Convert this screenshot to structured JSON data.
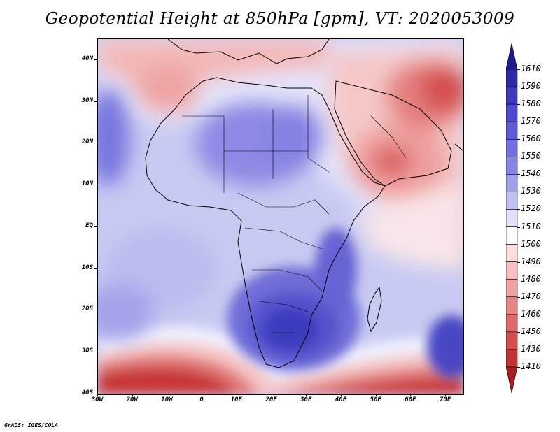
{
  "title": "Geopotential Height at 850hPa [gpm], VT: 2020053009",
  "credit": "GrADS: IGES/COLA",
  "map": {
    "variable": "Geopotential Height",
    "level": "850hPa",
    "units": "gpm",
    "valid_time": "2020053009",
    "lon_range": [
      -30,
      75
    ],
    "lat_range": [
      -40,
      45
    ],
    "lat_ticks": [
      {
        "value": 40,
        "label": "40N"
      },
      {
        "value": 30,
        "label": "30N"
      },
      {
        "value": 20,
        "label": "20N"
      },
      {
        "value": 10,
        "label": "10N"
      },
      {
        "value": 0,
        "label": "EQ"
      },
      {
        "value": -10,
        "label": "10S"
      },
      {
        "value": -20,
        "label": "20S"
      },
      {
        "value": -30,
        "label": "30S"
      },
      {
        "value": -40,
        "label": "40S"
      }
    ],
    "lon_ticks": [
      {
        "value": -30,
        "label": "30W"
      },
      {
        "value": -20,
        "label": "20W"
      },
      {
        "value": -10,
        "label": "10W"
      },
      {
        "value": 0,
        "label": "0"
      },
      {
        "value": 10,
        "label": "10E"
      },
      {
        "value": 20,
        "label": "20E"
      },
      {
        "value": 30,
        "label": "30E"
      },
      {
        "value": 40,
        "label": "40E"
      },
      {
        "value": 50,
        "label": "50E"
      },
      {
        "value": 60,
        "label": "60E"
      },
      {
        "value": 70,
        "label": "70E"
      }
    ]
  },
  "colorbar": {
    "levels": [
      {
        "label": "1610",
        "color": "#1c1a8c"
      },
      {
        "label": "1590",
        "color": "#2c2aa6"
      },
      {
        "label": "1580",
        "color": "#3b39bd"
      },
      {
        "label": "1570",
        "color": "#4c4ad0"
      },
      {
        "label": "1560",
        "color": "#5e5cd8"
      },
      {
        "label": "1550",
        "color": "#7270de"
      },
      {
        "label": "1540",
        "color": "#8886e4"
      },
      {
        "label": "1530",
        "color": "#a2a0ea"
      },
      {
        "label": "1520",
        "color": "#c0c0f2"
      },
      {
        "label": "1510",
        "color": "#e2e2fa"
      },
      {
        "label": "1500",
        "color": "#ffffff"
      },
      {
        "label": "1490",
        "color": "#fcdede"
      },
      {
        "label": "1480",
        "color": "#f6c0c0"
      },
      {
        "label": "1470",
        "color": "#f0a2a2"
      },
      {
        "label": "1460",
        "color": "#e88686"
      },
      {
        "label": "1450",
        "color": "#e06a6a"
      },
      {
        "label": "1430",
        "color": "#d44e4e"
      },
      {
        "label": "1410",
        "color": "#c23434"
      },
      {
        "label": "",
        "color": "#a81e1e"
      }
    ]
  },
  "colors": {
    "background": "#ffffff",
    "ocean_mid": "#c5c8f0",
    "deep_blue": "#3a38b6",
    "deep_red": "#b02424",
    "coast": "#000000"
  }
}
